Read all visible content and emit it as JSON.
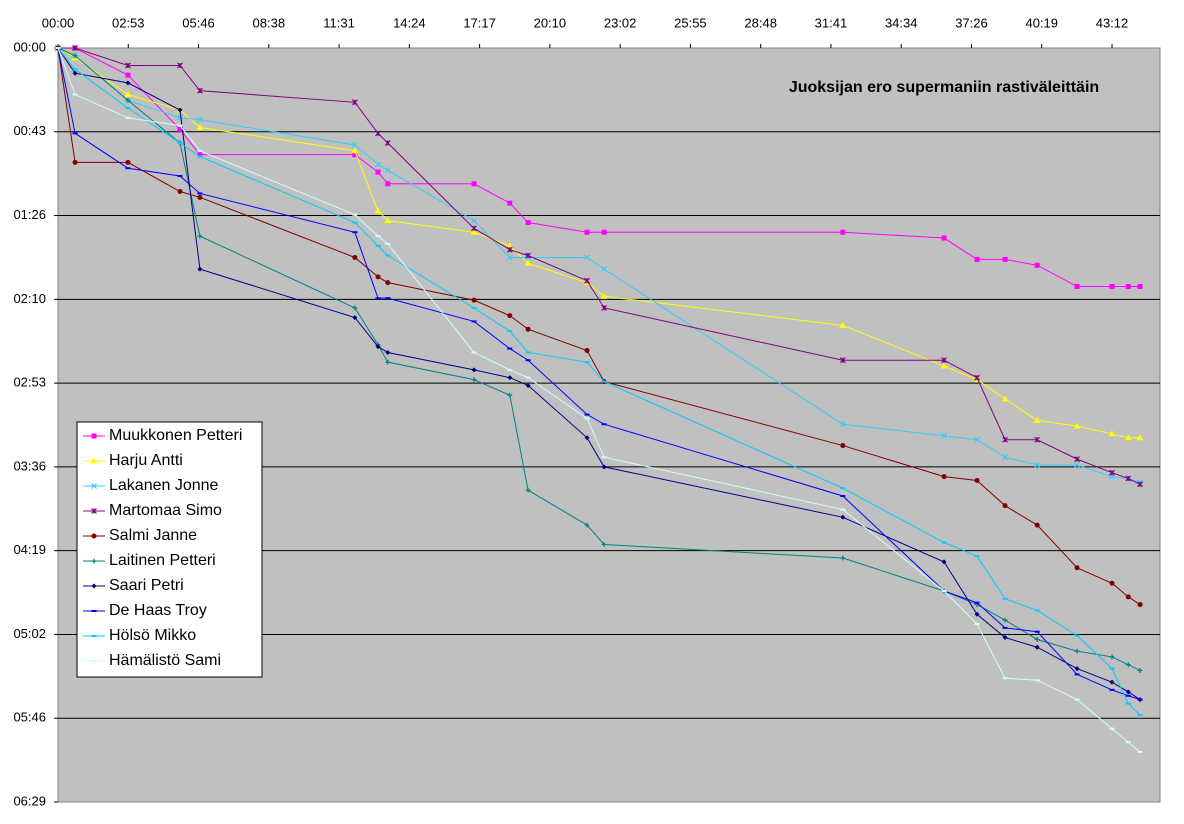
{
  "chart_data": {
    "type": "line",
    "title": "Juoksijan ero supermaniin rastiväleittäin",
    "x": [
      0,
      42,
      172,
      300,
      349,
      730,
      787,
      811,
      1023,
      1111,
      1156,
      1301,
      1343,
      1930,
      2179,
      2260,
      2329,
      2408,
      2506,
      2592,
      2632,
      2661
    ],
    "xlim": [
      0,
      2710
    ],
    "xticks": [
      {
        "value": 0,
        "label": "00:00"
      },
      {
        "value": 172.8,
        "label": "02:53"
      },
      {
        "value": 345.6,
        "label": "05:46"
      },
      {
        "value": 518.4,
        "label": "08:38"
      },
      {
        "value": 691.2,
        "label": "11:31"
      },
      {
        "value": 864,
        "label": "14:24"
      },
      {
        "value": 1036.8,
        "label": "17:17"
      },
      {
        "value": 1209.6,
        "label": "20:10"
      },
      {
        "value": 1382.4,
        "label": "23:02"
      },
      {
        "value": 1555.2,
        "label": "25:55"
      },
      {
        "value": 1728,
        "label": "28:48"
      },
      {
        "value": 1900.8,
        "label": "31:41"
      },
      {
        "value": 2073.6,
        "label": "34:34"
      },
      {
        "value": 2246.4,
        "label": "37:26"
      },
      {
        "value": 2419.2,
        "label": "40:19"
      },
      {
        "value": 2592,
        "label": "43:12"
      }
    ],
    "ylim": [
      0,
      388.8
    ],
    "y_reversed": true,
    "yticks": [
      {
        "value": 0,
        "label": "00:00"
      },
      {
        "value": 43.2,
        "label": "00:43"
      },
      {
        "value": 86.4,
        "label": "01:26"
      },
      {
        "value": 129.6,
        "label": "02:10"
      },
      {
        "value": 172.8,
        "label": "02:53"
      },
      {
        "value": 216,
        "label": "03:36"
      },
      {
        "value": 259.2,
        "label": "04:19"
      },
      {
        "value": 302.4,
        "label": "05:02"
      },
      {
        "value": 345.6,
        "label": "05:46"
      },
      {
        "value": 388.8,
        "label": "06:29"
      }
    ],
    "grid": true,
    "series": [
      {
        "name": "Muukkonen Petteri",
        "color": "#ff00ff",
        "marker": "square",
        "values": [
          0,
          0,
          14,
          42,
          55,
          55,
          64,
          70,
          70,
          80,
          90,
          95,
          95,
          95,
          98,
          109,
          109,
          112,
          123,
          123,
          123,
          123
        ]
      },
      {
        "name": "Harju Antti",
        "color": "#ffff00",
        "marker": "triangle",
        "values": [
          0,
          5,
          24,
          32,
          41,
          53,
          84,
          89,
          95,
          102,
          111,
          121,
          128,
          143,
          164,
          171,
          181,
          192,
          195,
          199,
          201,
          201
        ]
      },
      {
        "name": "Lakanen Jonne",
        "color": "#33ccff",
        "marker": "x",
        "values": [
          0,
          4,
          27,
          36,
          37,
          50,
          60,
          63,
          89,
          108,
          108,
          108,
          114,
          194,
          200,
          202,
          211,
          215,
          215,
          221,
          222,
          224
        ]
      },
      {
        "name": "Martomaa Simo",
        "color": "#800080",
        "marker": "star",
        "values": [
          0,
          0,
          9,
          9,
          22,
          28,
          44,
          49,
          93,
          104,
          107,
          120,
          134,
          161,
          161,
          170,
          202,
          202,
          212,
          219,
          222,
          225
        ]
      },
      {
        "name": "Salmi Janne",
        "color": "#800000",
        "marker": "circle",
        "values": [
          0,
          59,
          59,
          74,
          77,
          108,
          118,
          121,
          130,
          138,
          145,
          156,
          172,
          205,
          221,
          223,
          236,
          246,
          268,
          276,
          283,
          287
        ]
      },
      {
        "name": "Laitinen Petteri",
        "color": "#008080",
        "marker": "plus",
        "values": [
          0,
          4,
          27,
          49,
          97,
          134,
          153,
          162,
          171,
          179,
          228,
          246,
          256,
          263,
          280,
          287,
          295,
          305,
          311,
          314,
          318,
          321
        ]
      },
      {
        "name": "Saari Petri",
        "color": "#000080",
        "marker": "diamond",
        "values": [
          0,
          13,
          18,
          32,
          114,
          139,
          154,
          157,
          166,
          170,
          174,
          201,
          216,
          242,
          265,
          292,
          304,
          309,
          320,
          327,
          332,
          336
        ]
      },
      {
        "name": "De Haas Troy",
        "color": "#0000ff",
        "marker": "dash",
        "values": [
          0,
          44,
          62,
          66,
          75,
          95,
          129,
          129,
          141,
          155,
          161,
          189,
          194,
          231,
          280,
          286,
          299,
          301,
          323,
          331,
          334,
          336
        ]
      },
      {
        "name": "Hölsö Mikko",
        "color": "#00ccff",
        "marker": "dash",
        "values": [
          0,
          11,
          31,
          49,
          56,
          90,
          102,
          107,
          134,
          146,
          157,
          162,
          172,
          227,
          255,
          262,
          284,
          290,
          303,
          320,
          338,
          344
        ]
      },
      {
        "name": "Hämälistö Sami",
        "color": "#ccffff",
        "marker": "dash",
        "values": [
          0,
          24,
          36,
          40,
          53,
          86,
          97,
          101,
          157,
          166,
          170,
          191,
          211,
          238,
          280,
          297,
          325,
          326,
          336,
          351,
          358,
          363
        ]
      }
    ]
  }
}
